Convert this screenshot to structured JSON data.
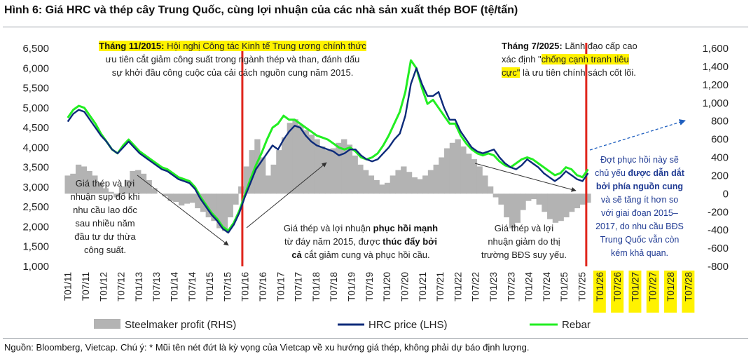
{
  "title": "Hình 6: Giá HRC và thép cây Trung Quốc, cùng lợi nhuận của các nhà sản xuất thép BOF (tệ/tấn)",
  "source": "Nguồn: Bloomberg, Vietcap. Chú ý: * Mũi tên nét đứt là kỳ vọng của Vietcap về xu hướng giá thép, không phải dự báo định lượng.",
  "annotations": {
    "nov2015_label": "Tháng 11/2015:",
    "nov2015_line1": "Hội nghị Công tác Kinh tế Trung ương chính thức",
    "nov2015_line2": "ưu tiên cắt giảm công suất trong ngành thép và than, đánh dấu",
    "nov2015_line3": "sự khởi đầu công cuộc của cải cách nguồn cung năm 2015.",
    "jul2025_label": "Tháng 7/2025:",
    "jul2025_line1": "Lãnh đạo cấp cao",
    "jul2025_line2a": "xác định \"",
    "jul2025_line2b": "chống cạnh tranh tiêu",
    "jul2025_line3a": "cực\"",
    "jul2025_line3b": "là ưu tiên chính sách cốt lõi.",
    "left_1": "Giá thép và lợi",
    "left_2": "nhuận sụp đổ khi",
    "left_3": "nhu cầu lao dốc",
    "left_4": "sau nhiều năm",
    "left_5": "đầu tư dư thừa",
    "left_6": "công suất.",
    "mid_1a": "Giá thép và lợi nhuận",
    "mid_1b": "phục hồi mạnh",
    "mid_2a": "từ đáy năm 2015, được",
    "mid_2b": "thúc đẩy bởi",
    "mid_3a": "cả",
    "mid_3b": "cắt giảm cung và phục hồi cầu.",
    "right_1": "Giá thép và lợi",
    "right_2": "nhuận giảm do thị",
    "right_3": "trường BĐS suy yếu.",
    "blue_1": "Đợt phục hồi này sẽ",
    "blue_2a": "chủ yếu",
    "blue_2b": "được dẫn dắt",
    "blue_3": "bởi phía nguồn cung",
    "blue_4": "và sẽ tăng ít hơn so",
    "blue_5": "với giai đoạn 2015–",
    "blue_6": "2017, do nhu cầu BĐS",
    "blue_7": "Trung Quốc vẫn còn",
    "blue_8": "kém khả quan."
  },
  "colors": {
    "profit": "#b3b3b3",
    "hrc": "#0d2b7a",
    "rebar": "#22ee22",
    "vline": "#e0261d",
    "arrow": "#1f5fbf",
    "highlight": "#fff200"
  },
  "chart_data": {
    "type": "line",
    "left_axis": {
      "label": "",
      "ticks": [
        "6,500",
        "6,000",
        "5,500",
        "5,000",
        "4,500",
        "4,000",
        "3,500",
        "3,000",
        "2,500",
        "2,000",
        "1,500",
        "1,000"
      ],
      "range": [
        1000,
        6500
      ]
    },
    "right_axis": {
      "label": "",
      "ticks": [
        "1,600",
        "1,400",
        "1,200",
        "1,000",
        "800",
        "600",
        "400",
        "200",
        "0",
        "-200",
        "-400",
        "-600",
        "-800"
      ],
      "range": [
        -800,
        1600
      ]
    },
    "x_ticks": [
      "T01/11",
      "T07/11",
      "T01/12",
      "T07/12",
      "T01/13",
      "T07/13",
      "T01/14",
      "T07/14",
      "T01/15",
      "T07/15",
      "T01/16",
      "T07/16",
      "T01/17",
      "T07/17",
      "T01/18",
      "T07/18",
      "T01/19",
      "T07/19",
      "T01/20",
      "T07/20",
      "T01/21",
      "T07/21",
      "T01/22",
      "T07/22",
      "T01/23",
      "T07/23",
      "T01/24",
      "T07/24",
      "T01/25",
      "T07/25",
      "T01/26",
      "T07/26",
      "T01/27",
      "T07/27",
      "T01/28",
      "T07/28"
    ],
    "x_ticks_highlighted_from": 30,
    "series": [
      {
        "name": "Steelmaker profit (RHS)",
        "type": "area",
        "axis": "right",
        "values": [
          200,
          220,
          320,
          300,
          250,
          200,
          120,
          60,
          20,
          -40,
          80,
          150,
          250,
          260,
          220,
          150,
          60,
          0,
          -30,
          -80,
          -90,
          -130,
          -110,
          -100,
          -160,
          -200,
          -260,
          -300,
          -380,
          -410,
          -260,
          -120,
          80,
          300,
          480,
          600,
          400,
          200,
          320,
          480,
          620,
          780,
          820,
          760,
          700,
          650,
          600,
          520,
          480,
          500,
          560,
          600,
          540,
          420,
          320,
          260,
          200,
          150,
          100,
          120,
          200,
          260,
          300,
          240,
          180,
          160,
          200,
          260,
          320,
          400,
          500,
          560,
          600,
          520,
          440,
          380,
          300,
          200,
          80,
          -40,
          -120,
          -260,
          -380,
          -320,
          -180,
          -80,
          -60,
          -120,
          -200,
          -280,
          -320,
          -300,
          -260,
          -200,
          -160,
          -120,
          -100
        ]
      },
      {
        "name": "HRC price (LHS)",
        "type": "line",
        "axis": "left",
        "values": [
          4650,
          4850,
          4950,
          4900,
          4700,
          4500,
          4300,
          4150,
          3950,
          3850,
          4000,
          4150,
          4000,
          3850,
          3750,
          3650,
          3550,
          3450,
          3400,
          3300,
          3200,
          3150,
          3100,
          2950,
          2700,
          2500,
          2300,
          2150,
          1950,
          1850,
          2050,
          2350,
          2750,
          3100,
          3450,
          3650,
          3850,
          4050,
          3950,
          4200,
          4400,
          4550,
          4500,
          4300,
          4150,
          4050,
          4000,
          3950,
          3900,
          3800,
          3850,
          3950,
          3950,
          3800,
          3700,
          3650,
          3700,
          3850,
          4000,
          4200,
          4350,
          4800,
          5600,
          6000,
          5600,
          5300,
          5300,
          5400,
          5000,
          4700,
          4700,
          4400,
          4200,
          4000,
          3900,
          3850,
          3900,
          3950,
          3750,
          3600,
          3500,
          3450,
          3550,
          3700,
          3600,
          3500,
          3350,
          3250,
          3150,
          3250,
          3400,
          3300,
          3200,
          3150,
          3350
        ]
      },
      {
        "name": "Rebar",
        "type": "line",
        "axis": "left",
        "values": [
          4750,
          4950,
          5050,
          5000,
          4800,
          4600,
          4350,
          4150,
          3950,
          3850,
          4050,
          4200,
          4050,
          3900,
          3800,
          3700,
          3600,
          3500,
          3450,
          3350,
          3250,
          3200,
          3150,
          3000,
          2750,
          2550,
          2350,
          2200,
          2000,
          1900,
          2100,
          2400,
          2800,
          3200,
          3550,
          3850,
          4200,
          4500,
          4600,
          4800,
          4700,
          4700,
          4600,
          4500,
          4400,
          4300,
          4250,
          4200,
          4100,
          4000,
          3950,
          4000,
          3900,
          3750,
          3700,
          3750,
          3850,
          4050,
          4300,
          4600,
          4900,
          5400,
          6200,
          6000,
          5500,
          5100,
          5200,
          5000,
          4800,
          4600,
          4600,
          4300,
          4100,
          3950,
          3850,
          3800,
          3850,
          3800,
          3650,
          3550,
          3500,
          3600,
          3700,
          3750,
          3700,
          3600,
          3500,
          3400,
          3300,
          3350,
          3500,
          3450,
          3300,
          3250,
          3450
        ]
      }
    ],
    "legend": [
      "Steelmaker profit (RHS)",
      "HRC price (LHS)",
      "Rebar"
    ],
    "legend_position": "bottom",
    "events": [
      "T11/2015",
      "T07/2025"
    ]
  }
}
